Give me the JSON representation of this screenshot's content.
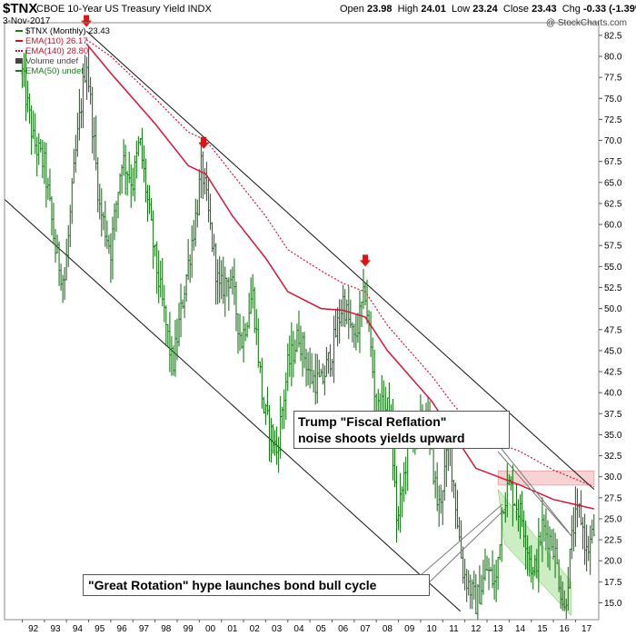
{
  "header": {
    "symbol": "$TNX",
    "name": "CBOE 10-Year US Treasury Yield INDX",
    "date": "3-Nov-2017",
    "open_label": "Open",
    "open": "23.98",
    "high_label": "High",
    "high": "24.01",
    "low_label": "Low",
    "low": "23.24",
    "close_label": "Close",
    "close": "23.43",
    "chg_label": "Chg",
    "chg": "-0.33 (-1.39%)",
    "credit": "@ StockCharts.com"
  },
  "legend": [
    {
      "text": "$TNX (Monthly) 23.43",
      "color": "#1a7a1a"
    },
    {
      "text": "EMA(110) 26.17",
      "color": "#cc1030"
    },
    {
      "text": "EMA(140) 28.80",
      "color": "#cc1030"
    },
    {
      "text": "Volume undef",
      "color": "#444444"
    },
    {
      "text": "EMA(50) undef",
      "color": "#1a7a1a"
    }
  ],
  "annotations": {
    "trump": [
      "Trump \"Fiscal Reflation\"",
      "noise shoots yields upward"
    ],
    "rotation": "\"Great Rotation\" hype launches bond bull cycle"
  },
  "colors": {
    "price": "#1a7a1a",
    "ema": "#d81438",
    "arrow": "#e21010",
    "zone": "#f4c0c0",
    "green_channel": "#b8e6a8"
  },
  "chart_data": {
    "type": "bar",
    "title": "$TNX CBOE 10-Year US Treasury Yield INDX",
    "ylim": [
      13,
      84
    ],
    "yticks": [
      "82.5",
      "80.0",
      "77.5",
      "75.0",
      "72.5",
      "70.0",
      "67.5",
      "65.0",
      "62.5",
      "60.0",
      "57.5",
      "55.0",
      "52.5",
      "50.0",
      "47.5",
      "45.0",
      "42.5",
      "40.0",
      "37.5",
      "35.0",
      "32.5",
      "30.0",
      "27.5",
      "25.0",
      "22.5",
      "20.0",
      "17.5",
      "15.0"
    ],
    "xticks": [
      "92",
      "93",
      "94",
      "95",
      "96",
      "97",
      "98",
      "99",
      "00",
      "01",
      "02",
      "03",
      "04",
      "05",
      "06",
      "07",
      "08",
      "09",
      "10",
      "11",
      "12",
      "13",
      "14",
      "15",
      "16",
      "17"
    ],
    "price_series": {
      "name": "$TNX (Monthly)",
      "anchors": [
        [
          1992.0,
          78
        ],
        [
          1992.5,
          70
        ],
        [
          1993.0,
          67
        ],
        [
          1993.5,
          57
        ],
        [
          1993.9,
          53
        ],
        [
          1994.4,
          68
        ],
        [
          1994.9,
          80
        ],
        [
          1995.5,
          62
        ],
        [
          1996.0,
          57
        ],
        [
          1996.5,
          68
        ],
        [
          1997.0,
          65
        ],
        [
          1997.3,
          70
        ],
        [
          1998.0,
          56
        ],
        [
          1998.8,
          43
        ],
        [
          1999.3,
          52
        ],
        [
          1999.9,
          62
        ],
        [
          2000.1,
          67
        ],
        [
          2000.9,
          52
        ],
        [
          2001.4,
          54
        ],
        [
          2001.9,
          46
        ],
        [
          2002.4,
          52
        ],
        [
          2002.9,
          38
        ],
        [
          2003.5,
          33
        ],
        [
          2004.0,
          43
        ],
        [
          2004.5,
          47
        ],
        [
          2005.0,
          42
        ],
        [
          2005.5,
          41
        ],
        [
          2006.0,
          45
        ],
        [
          2006.5,
          51
        ],
        [
          2007.0,
          46
        ],
        [
          2007.5,
          52
        ],
        [
          2008.0,
          38
        ],
        [
          2008.6,
          38
        ],
        [
          2008.95,
          24
        ],
        [
          2009.5,
          35
        ],
        [
          2010.3,
          37
        ],
        [
          2010.8,
          26
        ],
        [
          2011.3,
          34
        ],
        [
          2011.9,
          19
        ],
        [
          2012.5,
          15
        ],
        [
          2013.0,
          19
        ],
        [
          2013.4,
          17
        ],
        [
          2013.7,
          27
        ],
        [
          2014.0,
          29
        ],
        [
          2014.6,
          25
        ],
        [
          2015.1,
          18
        ],
        [
          2015.5,
          24
        ],
        [
          2016.0,
          22
        ],
        [
          2016.5,
          14
        ],
        [
          2016.9,
          24
        ],
        [
          2017.2,
          26
        ],
        [
          2017.5,
          21
        ],
        [
          2017.84,
          23.43
        ]
      ]
    },
    "series": [
      {
        "name": "EMA(110)",
        "value": 26.17,
        "anchors": [
          [
            1994.9,
            81.5
          ],
          [
            1996.0,
            78
          ],
          [
            1998.0,
            72
          ],
          [
            1999.5,
            67
          ],
          [
            2000.3,
            66
          ],
          [
            2001.5,
            61
          ],
          [
            2003.0,
            56
          ],
          [
            2004.0,
            52
          ],
          [
            2005.5,
            50
          ],
          [
            2006.5,
            49.8
          ],
          [
            2007.5,
            49
          ],
          [
            2008.5,
            45
          ],
          [
            2009.5,
            42
          ],
          [
            2010.5,
            39
          ],
          [
            2011.5,
            35
          ],
          [
            2012.5,
            31
          ],
          [
            2013.5,
            30
          ],
          [
            2014.5,
            29
          ],
          [
            2016.0,
            27.3
          ],
          [
            2017.84,
            26.17
          ]
        ]
      },
      {
        "name": "EMA(140)",
        "value": 28.8,
        "anchors": [
          [
            1994.9,
            82
          ],
          [
            1996.0,
            80
          ],
          [
            1998.0,
            75
          ],
          [
            1999.5,
            71
          ],
          [
            2000.3,
            70
          ],
          [
            2001.5,
            66
          ],
          [
            2003.0,
            61
          ],
          [
            2004.0,
            57
          ],
          [
            2005.5,
            54.5
          ],
          [
            2006.5,
            53
          ],
          [
            2007.5,
            52
          ],
          [
            2008.5,
            48
          ],
          [
            2009.5,
            45
          ],
          [
            2010.5,
            42
          ],
          [
            2011.5,
            38.5
          ],
          [
            2012.5,
            35.5
          ],
          [
            2013.5,
            34
          ],
          [
            2014.5,
            33
          ],
          [
            2016.0,
            30.8
          ],
          [
            2017.84,
            28.8
          ]
        ]
      }
    ],
    "trendlines": [
      {
        "name": "upper-channel",
        "from": [
          1994.9,
          83
        ],
        "to": [
          2017.84,
          28.5
        ]
      },
      {
        "name": "lower-channel",
        "from": [
          1991.2,
          63
        ],
        "to": [
          2011.8,
          14
        ]
      },
      {
        "name": "green-channel-upper",
        "from": [
          2013.5,
          28.5
        ],
        "to": [
          2016.8,
          17.5
        ]
      },
      {
        "name": "green-channel-lower",
        "from": [
          2013.8,
          22
        ],
        "to": [
          2016.8,
          13.5
        ]
      }
    ],
    "resistance_zone": {
      "x": [
        2013.5,
        2017.84
      ],
      "y": [
        29,
        30.7
      ]
    },
    "arrows": [
      [
        1994.9,
        83.5
      ],
      [
        2000.2,
        69
      ],
      [
        2007.5,
        55
      ]
    ]
  }
}
